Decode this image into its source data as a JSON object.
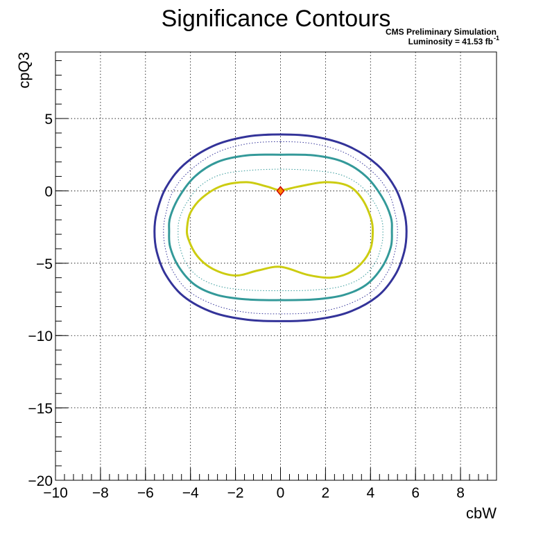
{
  "chart_data": {
    "type": "line",
    "title": "Significance Contours",
    "annotations": {
      "line1": "CMS Preliminary Simulation",
      "line2_prefix": "Luminosity = 41.53 fb",
      "line2_sup": "-1"
    },
    "xlabel": "cbW",
    "ylabel": "cpQ3",
    "xlim": [
      -10,
      9.6
    ],
    "ylim": [
      -20,
      9.6
    ],
    "xticks": [
      -10,
      -8,
      -6,
      -4,
      -2,
      0,
      2,
      4,
      6,
      8
    ],
    "yticks": [
      -20,
      -15,
      -10,
      -5,
      0,
      5
    ],
    "xtick_labels": [
      "−10",
      "−8",
      "−6",
      "−4",
      "−2",
      "0",
      "2",
      "4",
      "6",
      "8"
    ],
    "ytick_labels": [
      "−20",
      "−15",
      "−10",
      "−5",
      "0",
      "5"
    ],
    "grid": true,
    "legend": "none",
    "series": [
      {
        "color": "#333399",
        "style": "solid",
        "width": 3,
        "points": [
          [
            0,
            3.9
          ],
          [
            1.5,
            3.75
          ],
          [
            3.0,
            3.1
          ],
          [
            4.3,
            1.8
          ],
          [
            5.1,
            0.2
          ],
          [
            5.5,
            -1.5
          ],
          [
            5.6,
            -2.8
          ],
          [
            5.5,
            -4.2
          ],
          [
            5.1,
            -5.8
          ],
          [
            4.3,
            -7.3
          ],
          [
            3.0,
            -8.4
          ],
          [
            1.5,
            -8.9
          ],
          [
            0,
            -9.0
          ],
          [
            -1.5,
            -8.9
          ],
          [
            -3.0,
            -8.4
          ],
          [
            -4.3,
            -7.3
          ],
          [
            -5.1,
            -5.8
          ],
          [
            -5.5,
            -4.2
          ],
          [
            -5.6,
            -2.8
          ],
          [
            -5.5,
            -1.5
          ],
          [
            -5.1,
            0.2
          ],
          [
            -4.3,
            1.8
          ],
          [
            -3.0,
            3.1
          ],
          [
            -1.5,
            3.75
          ]
        ]
      },
      {
        "color": "#333399",
        "style": "dotted",
        "width": 1,
        "points": [
          [
            0,
            3.4
          ],
          [
            1.5,
            3.25
          ],
          [
            2.9,
            2.6
          ],
          [
            4.1,
            1.3
          ],
          [
            4.8,
            -0.1
          ],
          [
            5.1,
            -1.6
          ],
          [
            5.2,
            -2.8
          ],
          [
            5.1,
            -4.1
          ],
          [
            4.8,
            -5.5
          ],
          [
            4.1,
            -6.9
          ],
          [
            2.9,
            -7.9
          ],
          [
            1.5,
            -8.4
          ],
          [
            0,
            -8.5
          ],
          [
            -1.5,
            -8.4
          ],
          [
            -2.9,
            -7.9
          ],
          [
            -4.1,
            -6.9
          ],
          [
            -4.8,
            -5.5
          ],
          [
            -5.1,
            -4.1
          ],
          [
            -5.2,
            -2.8
          ],
          [
            -5.1,
            -1.6
          ],
          [
            -4.8,
            -0.1
          ],
          [
            -4.1,
            1.3
          ],
          [
            -2.9,
            2.6
          ],
          [
            -1.5,
            3.25
          ]
        ]
      },
      {
        "color": "#339999",
        "style": "solid",
        "width": 3,
        "points": [
          [
            0,
            2.5
          ],
          [
            1.5,
            2.45
          ],
          [
            2.8,
            2.0
          ],
          [
            3.8,
            1.0
          ],
          [
            4.5,
            -0.4
          ],
          [
            4.9,
            -1.8
          ],
          [
            4.95,
            -2.8
          ],
          [
            4.9,
            -3.9
          ],
          [
            4.5,
            -5.3
          ],
          [
            3.8,
            -6.5
          ],
          [
            2.8,
            -7.2
          ],
          [
            1.5,
            -7.5
          ],
          [
            0,
            -7.55
          ],
          [
            -1.5,
            -7.5
          ],
          [
            -2.8,
            -7.2
          ],
          [
            -3.8,
            -6.5
          ],
          [
            -4.5,
            -5.3
          ],
          [
            -4.9,
            -3.9
          ],
          [
            -4.95,
            -2.8
          ],
          [
            -4.9,
            -1.8
          ],
          [
            -4.5,
            -0.4
          ],
          [
            -3.8,
            1.0
          ],
          [
            -2.8,
            2.0
          ],
          [
            -1.5,
            2.45
          ]
        ]
      },
      {
        "color": "#339999",
        "style": "dotted",
        "width": 1,
        "points": [
          [
            0,
            1.5
          ],
          [
            1.5,
            1.4
          ],
          [
            2.7,
            1.1
          ],
          [
            3.6,
            0.3
          ],
          [
            4.2,
            -0.9
          ],
          [
            4.5,
            -2.0
          ],
          [
            4.55,
            -2.8
          ],
          [
            4.5,
            -3.7
          ],
          [
            4.2,
            -5.0
          ],
          [
            3.6,
            -6.0
          ],
          [
            2.7,
            -6.6
          ],
          [
            1.5,
            -6.85
          ],
          [
            0,
            -6.9
          ],
          [
            -1.5,
            -6.85
          ],
          [
            -2.7,
            -6.6
          ],
          [
            -3.6,
            -6.0
          ],
          [
            -4.2,
            -5.0
          ],
          [
            -4.5,
            -3.7
          ],
          [
            -4.55,
            -2.8
          ],
          [
            -4.5,
            -2.0
          ],
          [
            -4.2,
            -0.9
          ],
          [
            -3.6,
            0.3
          ],
          [
            -2.7,
            1.1
          ],
          [
            -1.5,
            1.4
          ]
        ]
      },
      {
        "color": "#cccc11",
        "style": "solid",
        "width": 3,
        "points": [
          [
            0,
            0.05
          ],
          [
            0.8,
            0.3
          ],
          [
            2.0,
            0.6
          ],
          [
            3.0,
            0.35
          ],
          [
            3.6,
            -0.5
          ],
          [
            4.0,
            -1.8
          ],
          [
            4.1,
            -2.8
          ],
          [
            4.0,
            -4.0
          ],
          [
            3.6,
            -5.0
          ],
          [
            3.0,
            -5.7
          ],
          [
            2.2,
            -6.0
          ],
          [
            1.2,
            -5.8
          ],
          [
            0,
            -5.25
          ],
          [
            -1.0,
            -5.5
          ],
          [
            -2.0,
            -5.85
          ],
          [
            -3.0,
            -5.4
          ],
          [
            -3.7,
            -4.5
          ],
          [
            -4.1,
            -3.3
          ],
          [
            -4.15,
            -2.5
          ],
          [
            -4.0,
            -1.5
          ],
          [
            -3.5,
            -0.5
          ],
          [
            -2.6,
            0.35
          ],
          [
            -1.5,
            0.6
          ],
          [
            -0.6,
            0.3
          ]
        ]
      }
    ],
    "marker": {
      "x": 0,
      "y": 0,
      "fill": "#ff8800",
      "stroke": "#cc0000"
    }
  }
}
